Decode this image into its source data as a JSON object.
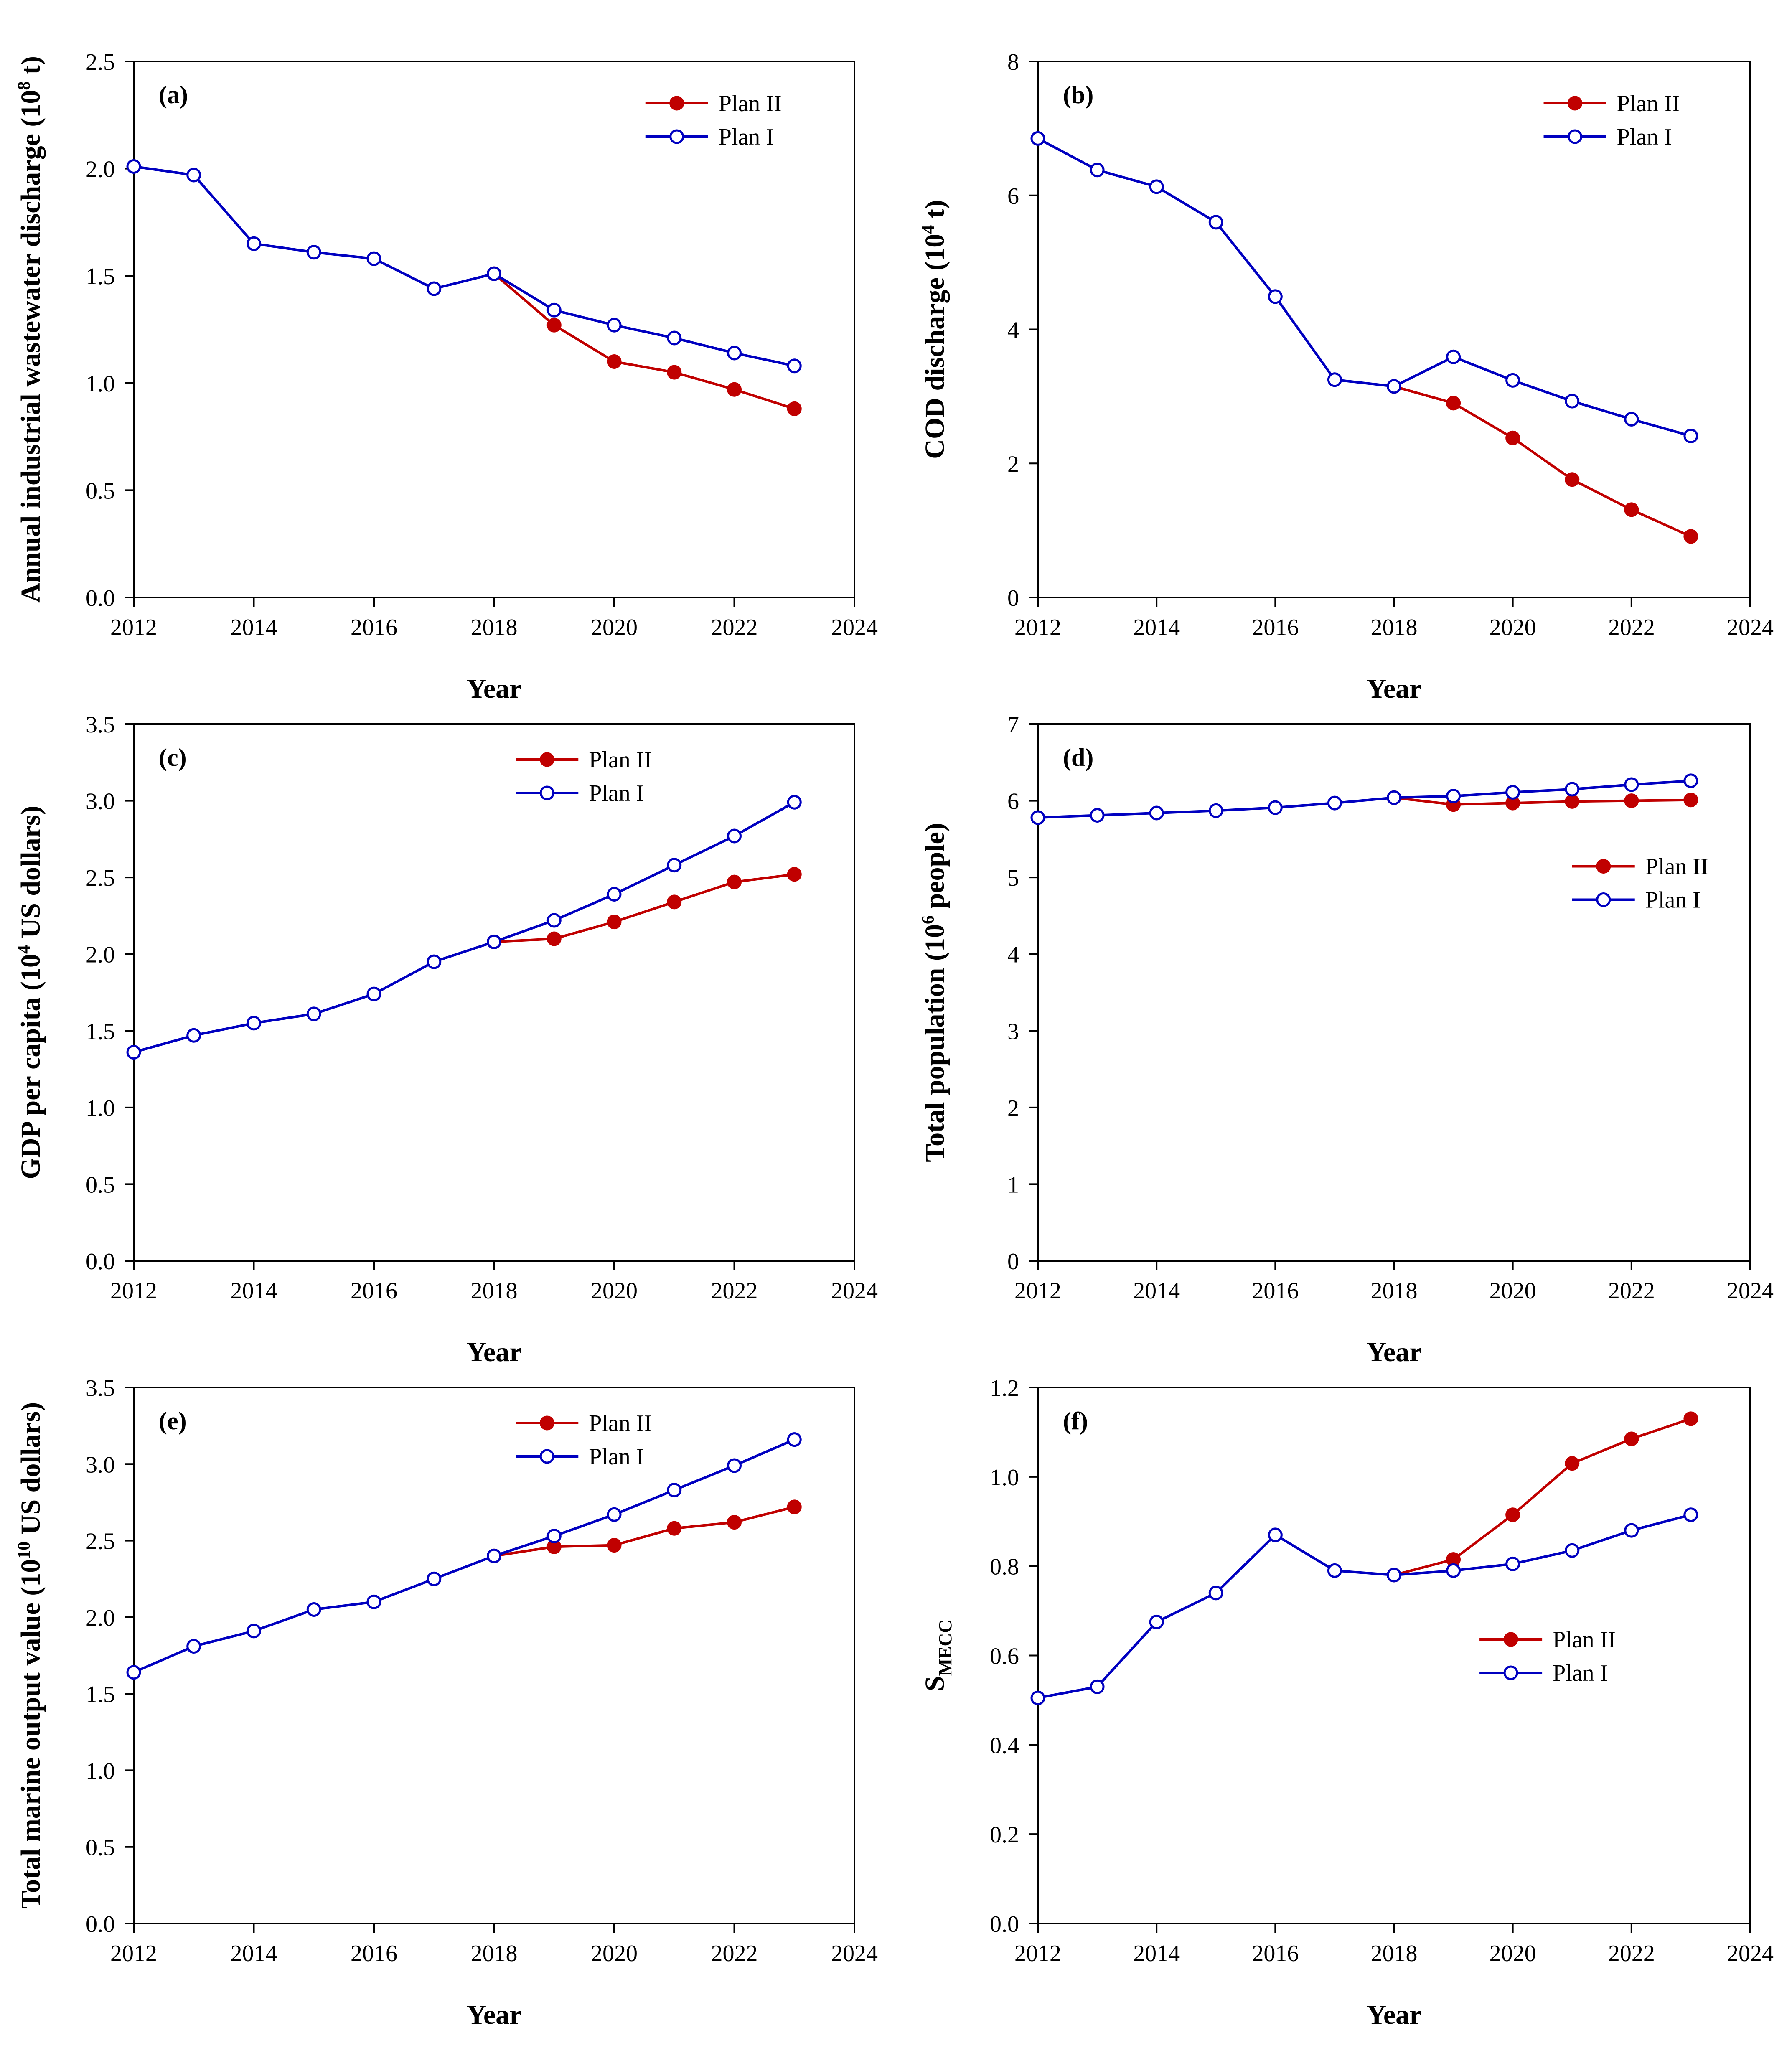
{
  "colors": {
    "plan2": "#c00000",
    "plan1": "#0000c0"
  },
  "chart_data": [
    {
      "type": "line",
      "panel": "(a)",
      "xlabel": "Year",
      "ylabel": "Annual industrial wastewater discharge (10",
      "ylabel_sup": "8",
      "ylabel_tail": " t)",
      "xlim": [
        2012,
        2024
      ],
      "ylim": [
        0,
        2.5
      ],
      "xticks": [
        "2012",
        "2014",
        "2016",
        "2018",
        "2020",
        "2022",
        "2024"
      ],
      "yticks": [
        "0.0",
        "0.5",
        "1.0",
        "1.5",
        "2.0",
        "2.5"
      ],
      "legend": "top-right",
      "series": [
        {
          "name": "Plan II",
          "key": "plan2",
          "x": [
            2018,
            2019,
            2020,
            2021,
            2022,
            2023
          ],
          "values": [
            1.51,
            1.27,
            1.1,
            1.05,
            0.97,
            0.88
          ]
        },
        {
          "name": "Plan I",
          "key": "plan1",
          "x": [
            2012,
            2013,
            2014,
            2015,
            2016,
            2017,
            2018,
            2019,
            2020,
            2021,
            2022,
            2023
          ],
          "values": [
            2.01,
            1.97,
            1.65,
            1.61,
            1.58,
            1.44,
            1.51,
            1.34,
            1.27,
            1.21,
            1.14,
            1.08
          ]
        }
      ]
    },
    {
      "type": "line",
      "panel": "(b)",
      "xlabel": "Year",
      "ylabel": "COD discharge (10",
      "ylabel_sup": "4",
      "ylabel_tail": " t)",
      "xlim": [
        2012,
        2024
      ],
      "ylim": [
        0,
        8
      ],
      "xticks": [
        "2012",
        "2014",
        "2016",
        "2018",
        "2020",
        "2022",
        "2024"
      ],
      "yticks": [
        "0",
        "2",
        "4",
        "6",
        "8"
      ],
      "legend": "top-right",
      "series": [
        {
          "name": "Plan II",
          "key": "plan2",
          "x": [
            2018,
            2019,
            2020,
            2021,
            2022,
            2023
          ],
          "values": [
            3.15,
            2.9,
            2.38,
            1.76,
            1.31,
            0.91
          ]
        },
        {
          "name": "Plan I",
          "key": "plan1",
          "x": [
            2012,
            2013,
            2014,
            2015,
            2016,
            2017,
            2018,
            2019,
            2020,
            2021,
            2022,
            2023
          ],
          "values": [
            6.85,
            6.38,
            6.13,
            5.6,
            4.49,
            3.25,
            3.15,
            3.59,
            3.24,
            2.93,
            2.66,
            2.41
          ]
        }
      ]
    },
    {
      "type": "line",
      "panel": "(c)",
      "xlabel": "Year",
      "ylabel": "GDP per capita (10",
      "ylabel_sup": "4",
      "ylabel_tail": " US dollars)",
      "xlim": [
        2012,
        2024
      ],
      "ylim": [
        0,
        3.5
      ],
      "xticks": [
        "2012",
        "2014",
        "2016",
        "2018",
        "2020",
        "2022",
        "2024"
      ],
      "yticks": [
        "0.0",
        "0.5",
        "1.0",
        "1.5",
        "2.0",
        "2.5",
        "3.0",
        "3.5"
      ],
      "legend": "top-center",
      "series": [
        {
          "name": "Plan II",
          "key": "plan2",
          "x": [
            2018,
            2019,
            2020,
            2021,
            2022,
            2023
          ],
          "values": [
            2.08,
            2.1,
            2.21,
            2.34,
            2.47,
            2.52
          ]
        },
        {
          "name": "Plan I",
          "key": "plan1",
          "x": [
            2012,
            2013,
            2014,
            2015,
            2016,
            2017,
            2018,
            2019,
            2020,
            2021,
            2022,
            2023
          ],
          "values": [
            1.36,
            1.47,
            1.55,
            1.61,
            1.74,
            1.95,
            2.08,
            2.22,
            2.39,
            2.58,
            2.77,
            2.99
          ]
        }
      ]
    },
    {
      "type": "line",
      "panel": "(d)",
      "xlabel": "Year",
      "ylabel": "Total population (10",
      "ylabel_sup": "6",
      "ylabel_tail": " people)",
      "xlim": [
        2012,
        2024
      ],
      "ylim": [
        0,
        7
      ],
      "xticks": [
        "2012",
        "2014",
        "2016",
        "2018",
        "2020",
        "2022",
        "2024"
      ],
      "yticks": [
        "0",
        "1",
        "2",
        "3",
        "4",
        "5",
        "6",
        "7"
      ],
      "legend": "right",
      "series": [
        {
          "name": "Plan II",
          "key": "plan2",
          "x": [
            2018,
            2019,
            2020,
            2021,
            2022,
            2023
          ],
          "values": [
            6.04,
            5.95,
            5.97,
            5.99,
            6.0,
            6.01
          ]
        },
        {
          "name": "Plan I",
          "key": "plan1",
          "x": [
            2012,
            2013,
            2014,
            2015,
            2016,
            2017,
            2018,
            2019,
            2020,
            2021,
            2022,
            2023
          ],
          "values": [
            5.78,
            5.81,
            5.84,
            5.87,
            5.91,
            5.97,
            6.04,
            6.06,
            6.11,
            6.15,
            6.21,
            6.26
          ]
        }
      ]
    },
    {
      "type": "line",
      "panel": "(e)",
      "xlabel": "Year",
      "ylabel": "Total marine output value (10",
      "ylabel_sup": "10",
      "ylabel_tail": " US dollars)",
      "xlim": [
        2012,
        2024
      ],
      "ylim": [
        0,
        3.5
      ],
      "xticks": [
        "2012",
        "2014",
        "2016",
        "2018",
        "2020",
        "2022",
        "2024"
      ],
      "yticks": [
        "0.0",
        "0.5",
        "1.0",
        "1.5",
        "2.0",
        "2.5",
        "3.0",
        "3.5"
      ],
      "legend": "top-center",
      "series": [
        {
          "name": "Plan II",
          "key": "plan2",
          "x": [
            2018,
            2019,
            2020,
            2021,
            2022,
            2023
          ],
          "values": [
            2.4,
            2.46,
            2.47,
            2.58,
            2.62,
            2.72
          ]
        },
        {
          "name": "Plan I",
          "key": "plan1",
          "x": [
            2012,
            2013,
            2014,
            2015,
            2016,
            2017,
            2018,
            2019,
            2020,
            2021,
            2022,
            2023
          ],
          "values": [
            1.64,
            1.81,
            1.91,
            2.05,
            2.1,
            2.25,
            2.4,
            2.53,
            2.67,
            2.83,
            2.99,
            3.16
          ]
        }
      ]
    },
    {
      "type": "line",
      "panel": "(f)",
      "xlabel": "Year",
      "ylabel": "S",
      "ylabel_sub": "MECC",
      "xlim": [
        2012,
        2024
      ],
      "ylim": [
        0,
        1.2
      ],
      "xticks": [
        "2012",
        "2014",
        "2016",
        "2018",
        "2020",
        "2022",
        "2024"
      ],
      "yticks": [
        "0.0",
        "0.2",
        "0.4",
        "0.6",
        "0.8",
        "1.0",
        "1.2"
      ],
      "legend": "center-right",
      "series": [
        {
          "name": "Plan II",
          "key": "plan2",
          "x": [
            2018,
            2019,
            2020,
            2021,
            2022,
            2023
          ],
          "values": [
            0.78,
            0.815,
            0.915,
            1.03,
            1.085,
            1.13
          ]
        },
        {
          "name": "Plan I",
          "key": "plan1",
          "x": [
            2012,
            2013,
            2014,
            2015,
            2016,
            2017,
            2018,
            2019,
            2020,
            2021,
            2022,
            2023
          ],
          "values": [
            0.505,
            0.53,
            0.675,
            0.74,
            0.87,
            0.79,
            0.78,
            0.79,
            0.805,
            0.835,
            0.88,
            0.915
          ]
        }
      ]
    }
  ]
}
